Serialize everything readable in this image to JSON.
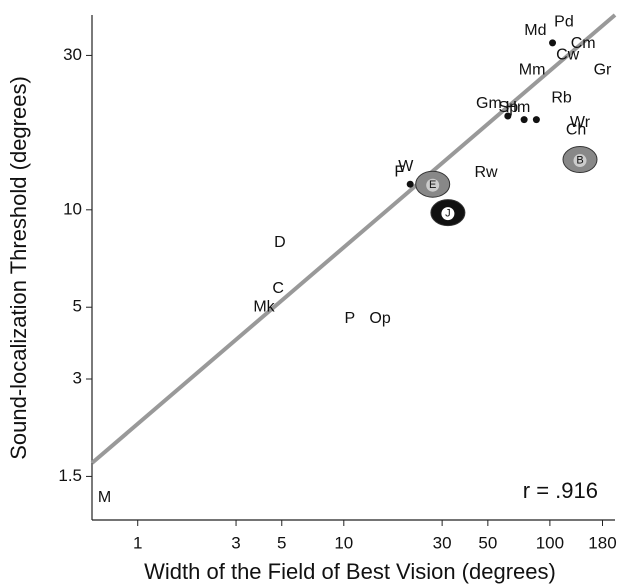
{
  "chart_data": {
    "type": "scatter",
    "x_label": "Width of the Field of Best Vision (degrees)",
    "y_label": "Sound-localization Threshold (degrees)",
    "annotation": "r = .916",
    "log_x": true,
    "log_y": true,
    "xlim": [
      0.6,
      207
    ],
    "ylim": [
      1.1,
      40
    ],
    "xticks": [
      1,
      3,
      5,
      10,
      30,
      50,
      100,
      180
    ],
    "yticks": [
      1.5,
      3,
      5,
      10,
      30
    ],
    "color": "#999999",
    "fit_line": {
      "x": [
        0.6,
        207
      ],
      "y": [
        1.65,
        40
      ]
    },
    "points": [
      {
        "label": "M",
        "x": 0.69,
        "y": 1.29,
        "kind": "label"
      },
      {
        "label": "Mk",
        "x": 4.1,
        "y": 5,
        "kind": "label"
      },
      {
        "label": "C",
        "x": 4.8,
        "y": 5.7,
        "kind": "label"
      },
      {
        "label": "D",
        "x": 4.9,
        "y": 7.9,
        "kind": "label"
      },
      {
        "label": "P",
        "x": 10.7,
        "y": 4.6,
        "kind": "label"
      },
      {
        "label": "Op",
        "x": 15,
        "y": 4.6,
        "kind": "label"
      },
      {
        "label": "F",
        "x": 21,
        "y": 12,
        "kind": "dot"
      },
      {
        "label": "W",
        "x": 20,
        "y": 13.6,
        "kind": "label"
      },
      {
        "label": "E",
        "x": 27,
        "y": 12,
        "kind": "icon"
      },
      {
        "label": "J",
        "x": 32,
        "y": 9.8,
        "kind": "icon"
      },
      {
        "label": "Rw",
        "x": 49,
        "y": 13,
        "kind": "label"
      },
      {
        "label": "Gm",
        "x": 62.5,
        "y": 19.5,
        "kind": "dot"
      },
      {
        "label": "Sp",
        "x": 75,
        "y": 19,
        "kind": "dot"
      },
      {
        "label": "Hm",
        "x": 86,
        "y": 19,
        "kind": "dot"
      },
      {
        "label": "Ch",
        "x": 134,
        "y": 17.6,
        "kind": "label"
      },
      {
        "label": "Rb",
        "x": 114,
        "y": 22.1,
        "kind": "label"
      },
      {
        "label": "Wr",
        "x": 140,
        "y": 18.6,
        "kind": "label"
      },
      {
        "label": "B",
        "x": 140,
        "y": 14.3,
        "kind": "icon"
      },
      {
        "label": "Gr",
        "x": 180,
        "y": 27,
        "kind": "label"
      },
      {
        "label": "Mm",
        "x": 82,
        "y": 27,
        "kind": "label"
      },
      {
        "label": "Cw",
        "x": 122,
        "y": 30,
        "kind": "label"
      },
      {
        "label": "Cm",
        "x": 145,
        "y": 32.6,
        "kind": "label"
      },
      {
        "label": "Md",
        "x": 103,
        "y": 32.8,
        "kind": "dot"
      },
      {
        "label": "Pd",
        "x": 117,
        "y": 38,
        "kind": "label"
      }
    ]
  }
}
